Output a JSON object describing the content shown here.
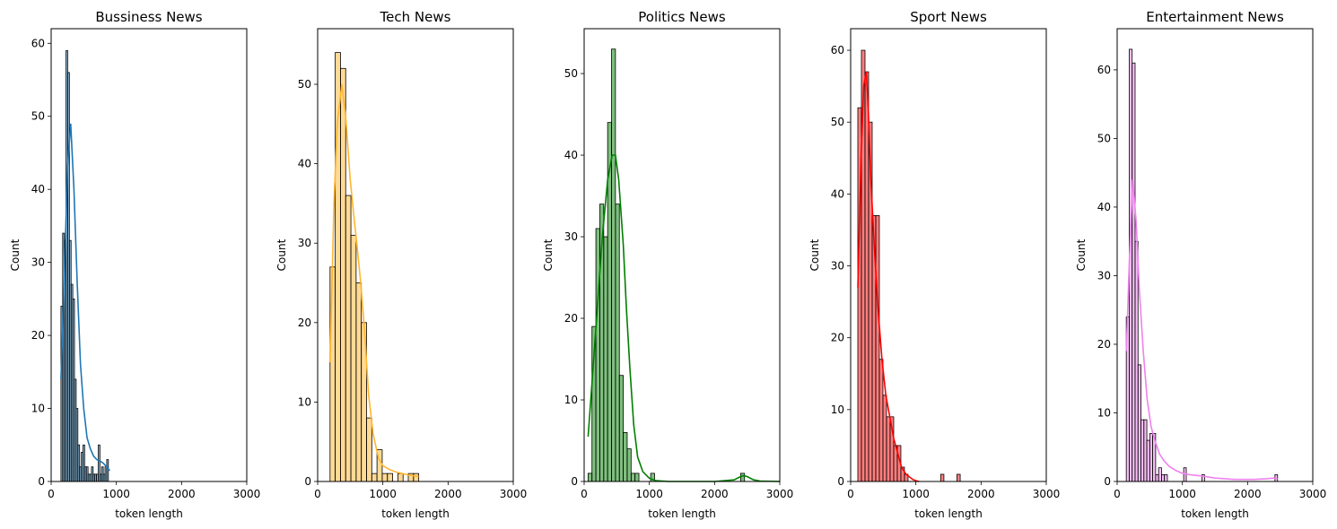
{
  "chart_data": [
    {
      "type": "bar",
      "title": "Bussiness News",
      "xlabel": "token length",
      "ylabel": "Count",
      "xlim": [
        0,
        3000
      ],
      "ylim": [
        0,
        62
      ],
      "xticks": [
        0,
        1000,
        2000,
        3000
      ],
      "yticks": [
        0,
        10,
        20,
        30,
        40,
        50,
        60
      ],
      "color": "#1f77b4",
      "bin_edges": [
        150,
        176,
        202,
        228,
        254,
        280,
        306,
        332,
        358,
        384,
        410,
        436,
        462,
        488,
        514,
        540,
        566,
        592,
        618,
        644,
        670,
        696,
        722,
        748,
        774,
        800,
        826,
        852,
        878
      ],
      "counts": [
        24,
        34,
        33,
        59,
        56,
        33,
        27,
        25,
        14,
        10,
        5,
        2,
        4,
        5,
        2,
        2,
        1,
        1,
        2,
        1,
        1,
        1,
        5,
        1,
        2,
        1,
        2,
        3
      ],
      "kde": [
        [
          150,
          14
        ],
        [
          200,
          27
        ],
        [
          250,
          43
        ],
        [
          300,
          49
        ],
        [
          350,
          40
        ],
        [
          400,
          27
        ],
        [
          450,
          16
        ],
        [
          500,
          10
        ],
        [
          550,
          6
        ],
        [
          600,
          4.5
        ],
        [
          650,
          3.5
        ],
        [
          700,
          3
        ],
        [
          750,
          2.8
        ],
        [
          800,
          2.5
        ],
        [
          850,
          2
        ],
        [
          900,
          1.5
        ]
      ]
    },
    {
      "type": "bar",
      "title": "Tech News",
      "xlabel": "token length",
      "ylabel": "Count",
      "xlim": [
        0,
        3000
      ],
      "ylim": [
        0,
        57
      ],
      "xticks": [
        0,
        1000,
        2000,
        3000
      ],
      "yticks": [
        0,
        10,
        20,
        30,
        40,
        50
      ],
      "color": "#ffb52e",
      "bin_edges": [
        190,
        270,
        350,
        430,
        510,
        590,
        670,
        750,
        830,
        910,
        990,
        1070,
        1150,
        1230,
        1310,
        1390,
        1470,
        1550
      ],
      "counts": [
        27,
        54,
        52,
        36,
        31,
        25,
        20,
        8,
        1,
        4,
        1,
        1,
        0,
        1,
        0,
        1,
        1
      ],
      "kde": [
        [
          190,
          15
        ],
        [
          250,
          35
        ],
        [
          300,
          45
        ],
        [
          370,
          50
        ],
        [
          430,
          46
        ],
        [
          500,
          38
        ],
        [
          560,
          33
        ],
        [
          600,
          30
        ],
        [
          660,
          25
        ],
        [
          720,
          19
        ],
        [
          780,
          11
        ],
        [
          850,
          6
        ],
        [
          930,
          3
        ],
        [
          1000,
          2
        ],
        [
          1100,
          1.5
        ],
        [
          1200,
          1.2
        ],
        [
          1300,
          1
        ],
        [
          1400,
          0.8
        ],
        [
          1500,
          0.7
        ],
        [
          1550,
          0.6
        ]
      ]
    },
    {
      "type": "bar",
      "title": "Politics News",
      "xlabel": "token length",
      "ylabel": "Count",
      "xlim": [
        0,
        3000
      ],
      "ylim": [
        0,
        55.5
      ],
      "xticks": [
        0,
        1000,
        2000,
        3000
      ],
      "yticks": [
        0,
        10,
        20,
        30,
        40,
        50
      ],
      "color": "#008000",
      "bin_edges": [
        60,
        120,
        180,
        240,
        300,
        360,
        420,
        480,
        540,
        600,
        660,
        720,
        780,
        840,
        900,
        960,
        1020,
        1080
      ],
      "counts": [
        1,
        19,
        31,
        34,
        30,
        44,
        53,
        34,
        13,
        6,
        4,
        1,
        1,
        0,
        0,
        0,
        1
      ],
      "kde": [
        [
          60,
          5.5
        ],
        [
          120,
          12
        ],
        [
          200,
          21
        ],
        [
          280,
          30
        ],
        [
          360,
          37
        ],
        [
          430,
          40
        ],
        [
          480,
          40
        ],
        [
          530,
          37
        ],
        [
          600,
          29
        ],
        [
          650,
          21
        ],
        [
          700,
          14
        ],
        [
          760,
          7
        ],
        [
          820,
          3
        ],
        [
          900,
          1.2
        ],
        [
          1000,
          0.4
        ],
        [
          1100,
          0.1
        ],
        [
          1300,
          0
        ],
        [
          2000,
          0
        ],
        [
          2300,
          0.2
        ],
        [
          2400,
          0.6
        ],
        [
          2450,
          0.7
        ],
        [
          2500,
          0.6
        ],
        [
          2600,
          0.2
        ],
        [
          2700,
          0.05
        ],
        [
          3000,
          0
        ]
      ],
      "outlier_bin": [
        2400,
        2460,
        1
      ]
    },
    {
      "type": "bar",
      "title": "Sport News",
      "xlabel": "token length",
      "ylabel": "Count",
      "xlim": [
        0,
        3000
      ],
      "ylim": [
        0,
        63
      ],
      "xticks": [
        0,
        1000,
        2000,
        3000
      ],
      "yticks": [
        0,
        10,
        20,
        30,
        40,
        50,
        60
      ],
      "color": "#ff0000",
      "bin_edges": [
        110,
        165,
        220,
        275,
        330,
        385,
        440,
        495,
        550,
        605,
        660,
        715,
        770,
        825,
        880
      ],
      "counts": [
        52,
        60,
        57,
        50,
        37,
        37,
        17,
        12,
        9,
        9,
        5,
        5,
        2,
        1
      ],
      "kde": [
        [
          110,
          27
        ],
        [
          160,
          45
        ],
        [
          200,
          55
        ],
        [
          240,
          57
        ],
        [
          270,
          52
        ],
        [
          310,
          42
        ],
        [
          360,
          33
        ],
        [
          420,
          24
        ],
        [
          480,
          17
        ],
        [
          540,
          12
        ],
        [
          600,
          9
        ],
        [
          660,
          6
        ],
        [
          720,
          4
        ],
        [
          780,
          2
        ],
        [
          850,
          1
        ],
        [
          950,
          0.3
        ],
        [
          1000,
          0.1
        ],
        [
          1050,
          0
        ]
      ],
      "outlier_bins": [
        [
          1380,
          1430,
          1
        ],
        [
          1630,
          1680,
          1
        ]
      ]
    },
    {
      "type": "bar",
      "title": "Entertainment News",
      "xlabel": "token length",
      "ylabel": "Count",
      "xlim": [
        0,
        3000
      ],
      "ylim": [
        0,
        66
      ],
      "xticks": [
        0,
        1000,
        2000,
        3000
      ],
      "yticks": [
        0,
        10,
        20,
        30,
        40,
        50,
        60
      ],
      "color": "#ee82ee",
      "bin_edges": [
        140,
        185,
        230,
        275,
        320,
        365,
        410,
        455,
        500,
        545,
        590,
        635,
        680,
        725,
        770
      ],
      "counts": [
        24,
        63,
        61,
        35,
        17,
        9,
        9,
        6,
        7,
        7,
        1,
        2,
        1,
        1
      ],
      "kde": [
        [
          140,
          19
        ],
        [
          190,
          33
        ],
        [
          240,
          44
        ],
        [
          290,
          38
        ],
        [
          340,
          28
        ],
        [
          400,
          19
        ],
        [
          460,
          12
        ],
        [
          520,
          8
        ],
        [
          580,
          6
        ],
        [
          650,
          4
        ],
        [
          720,
          3
        ],
        [
          800,
          2.2
        ],
        [
          900,
          1.6
        ],
        [
          1000,
          1.2
        ],
        [
          1100,
          1
        ],
        [
          1300,
          0.8
        ],
        [
          1500,
          0.5
        ],
        [
          1800,
          0.3
        ],
        [
          2100,
          0.3
        ],
        [
          2300,
          0.4
        ],
        [
          2400,
          0.5
        ],
        [
          2460,
          0.4
        ]
      ],
      "outlier_bins": [
        [
          1020,
          1060,
          2
        ],
        [
          1300,
          1340,
          1
        ],
        [
          2420,
          2460,
          1
        ]
      ]
    }
  ]
}
